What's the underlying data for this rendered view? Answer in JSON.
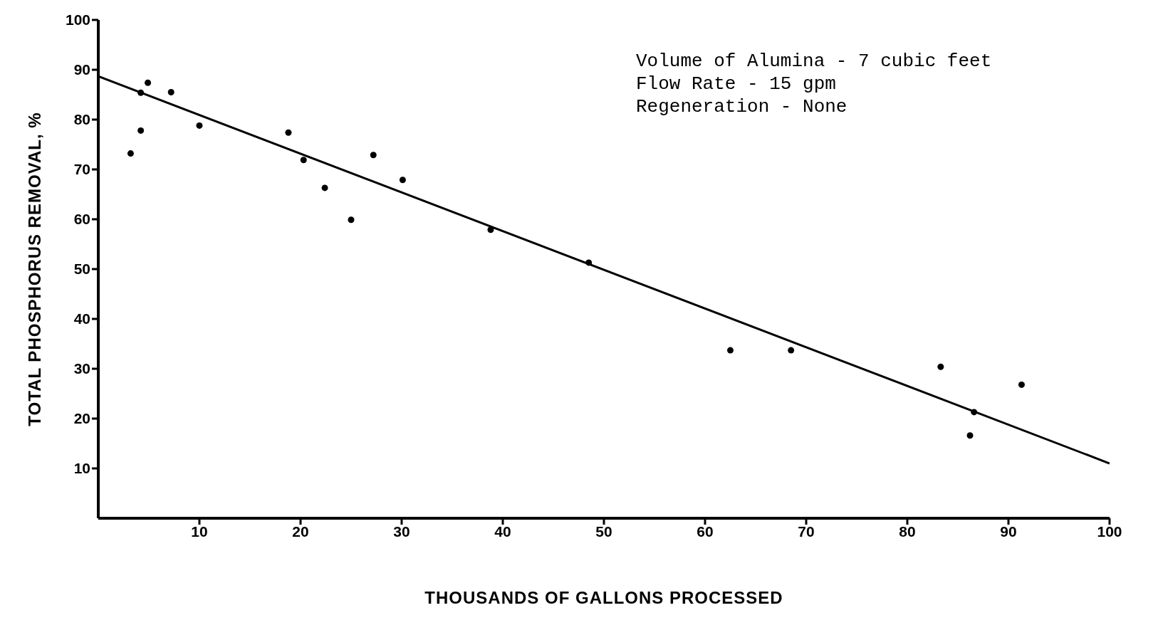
{
  "chart_data": {
    "type": "scatter",
    "xlabel": "THOUSANDS OF GALLONS PROCESSED",
    "ylabel": "TOTAL PHOSPHORUS REMOVAL, %",
    "annotations": [
      "Volume of Alumina - 7 cubic feet",
      "Flow Rate - 15 gpm",
      "Regeneration - None"
    ],
    "x": [
      3.2,
      4.2,
      4.2,
      4.9,
      7.2,
      10.0,
      18.8,
      20.3,
      22.4,
      25.0,
      27.2,
      30.1,
      38.8,
      48.5,
      62.5,
      68.5,
      83.3,
      86.6,
      86.2,
      91.3
    ],
    "series": [
      {
        "color": "#000000",
        "marker": "circle",
        "values": [
          73.2,
          77.8,
          85.4,
          87.4,
          85.5,
          78.8,
          77.4,
          71.9,
          66.3,
          59.9,
          72.9,
          67.9,
          57.9,
          51.3,
          33.7,
          33.7,
          30.4,
          21.3,
          16.6,
          26.8
        ]
      },
      {
        "type": "line",
        "color": "#000000",
        "line_style": "solid",
        "marker": "none",
        "x": [
          0,
          100
        ],
        "values": [
          88.7,
          11.0
        ]
      }
    ],
    "xlim": [
      0,
      100
    ],
    "ylim": [
      0,
      100
    ],
    "xticks": [
      10,
      20,
      30,
      40,
      50,
      60,
      70,
      80,
      90,
      100
    ],
    "yticks": [
      10,
      20,
      30,
      40,
      50,
      60,
      70,
      80,
      90,
      100
    ],
    "grid": false,
    "legend": false
  }
}
